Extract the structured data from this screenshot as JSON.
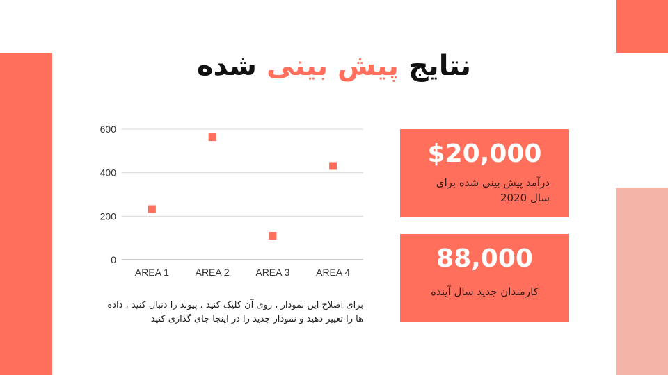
{
  "title": {
    "part1": "نتایج",
    "accent": "پیش بینی",
    "part2": "شده"
  },
  "colors": {
    "accent": "#ff6f5b",
    "accent_light": "#f5b4a8",
    "text": "#111111"
  },
  "chart_data": {
    "type": "scatter",
    "categories": [
      "AREA 1",
      "AREA 2",
      "AREA 3",
      "AREA 4"
    ],
    "values": [
      233,
      563,
      110,
      431
    ],
    "ylim": [
      0,
      600
    ],
    "yticks": [
      0,
      200,
      400,
      600
    ],
    "grid": true,
    "marker_color": "#ff6f5b"
  },
  "cards": [
    {
      "value": "$20,000",
      "label": "درآمد پیش بینی شده برای سال 2020"
    },
    {
      "value": "88,000",
      "label": "کارمندان جدید سال آینده"
    }
  ],
  "note": "برای اصلاح این نمودار ، روی آن کلیک کنید ، پیوند را دنبال کنید ، داده ها را تغییر دهید و نمودار جدید را در اینجا جای گذاری کنید"
}
